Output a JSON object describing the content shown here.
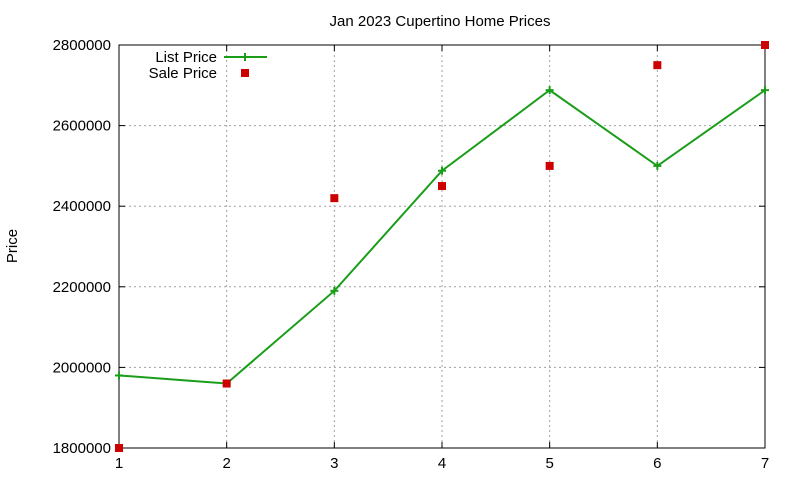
{
  "chart_data": {
    "type": "line",
    "title": "Jan 2023 Cupertino Home Prices",
    "xlabel": "",
    "ylabel": "Price",
    "xlim": [
      1,
      7
    ],
    "ylim": [
      1800000,
      2800000
    ],
    "x_ticks": [
      1,
      2,
      3,
      4,
      5,
      6,
      7
    ],
    "y_ticks": [
      1800000,
      2000000,
      2200000,
      2400000,
      2600000,
      2800000
    ],
    "grid": true,
    "legend_position": "top-left",
    "series": [
      {
        "name": "List Price",
        "style": "line-with-plus-markers",
        "color": "#1a9e1a",
        "x": [
          1,
          2,
          3,
          4,
          5,
          6,
          7
        ],
        "y": [
          1980000,
          1960000,
          2190000,
          2488000,
          2688000,
          2500000,
          2688000
        ]
      },
      {
        "name": "Sale Price",
        "style": "square-markers",
        "color": "#cc0000",
        "x": [
          1,
          2,
          3,
          4,
          5,
          6,
          7
        ],
        "y": [
          1800000,
          1960000,
          2420000,
          2450000,
          2500000,
          2750000,
          2800000
        ]
      }
    ]
  }
}
